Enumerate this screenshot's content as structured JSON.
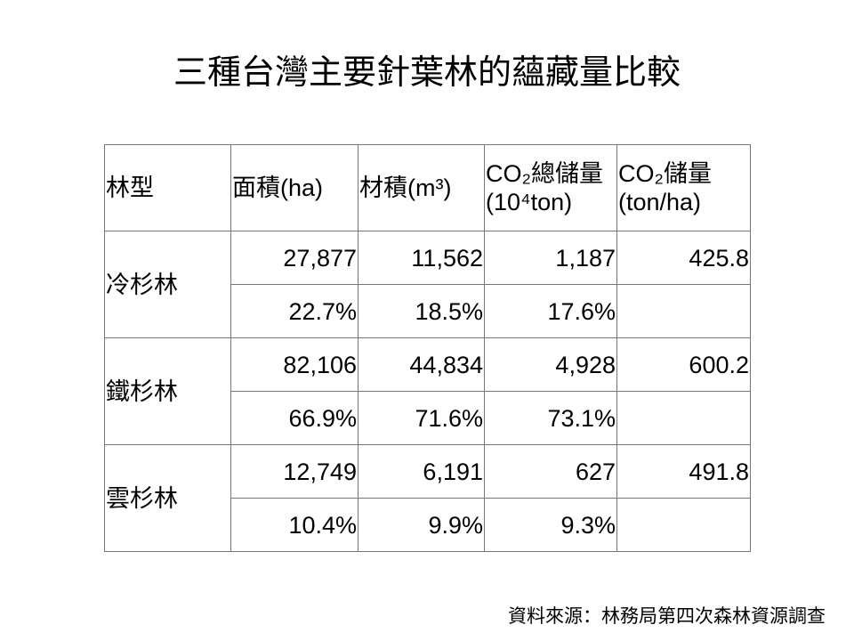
{
  "title": "三種台灣主要針葉林的蘊藏量比較",
  "table": {
    "header": [
      "林型",
      "面積(ha)",
      "材積(m³)",
      "CO₂總儲量(10⁴ton)",
      "CO₂儲量(ton/ha)"
    ],
    "groups": [
      {
        "name": "冷杉林",
        "values": [
          "27,877",
          "11,562",
          "1,187",
          "425.8"
        ],
        "shares": [
          "22.7%",
          "18.5%",
          "17.6%"
        ]
      },
      {
        "name": "鐵杉林",
        "values": [
          "82,106",
          "44,834",
          "4,928",
          "600.2"
        ],
        "shares": [
          "66.9%",
          "71.6%",
          "73.1%"
        ]
      },
      {
        "name": "雲杉林",
        "values": [
          "12,749",
          "6,191",
          "627",
          "491.8"
        ],
        "shares": [
          "10.4%",
          "9.9%",
          "9.3%"
        ]
      }
    ]
  },
  "source": "資料來源：林務局第四次森林資源調查"
}
